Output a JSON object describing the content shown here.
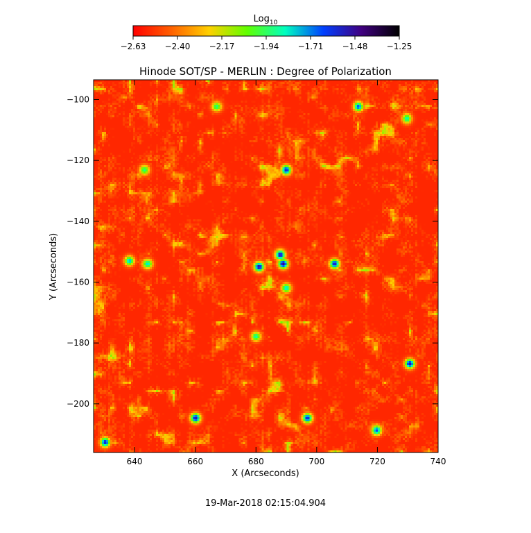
{
  "chart_data": {
    "type": "heatmap",
    "title": "Hinode SOT/SP - MERLIN : Degree of Polarization",
    "xlabel": "X (Arcseconds)",
    "ylabel": "Y (Arcseconds)",
    "xlim": [
      626.5,
      740
    ],
    "ylim": [
      -216,
      -93.5
    ],
    "x_ticks": [
      640,
      660,
      680,
      700,
      720,
      740
    ],
    "x_tick_labels": [
      "640",
      "660",
      "680",
      "700",
      "720",
      "740"
    ],
    "y_ticks": [
      -100,
      -120,
      -140,
      -160,
      -180,
      -200
    ],
    "y_tick_labels": [
      "−100",
      "−120",
      "−140",
      "−160",
      "−180",
      "−200"
    ],
    "colorbar": {
      "label_base": "Log",
      "label_sub": "10",
      "range": [
        -2.63,
        -1.25
      ],
      "ticks": [
        -2.63,
        -2.4,
        -2.17,
        -1.94,
        -1.71,
        -1.48,
        -1.25
      ],
      "tick_labels": [
        "−2.63",
        "−2.40",
        "−2.17",
        "−1.94",
        "−1.71",
        "−1.48",
        "−1.25"
      ],
      "colormap": [
        "#ff0000",
        "#ff6000",
        "#ffd000",
        "#60ff00",
        "#00ffc0",
        "#0040ff",
        "#400080",
        "#000000"
      ]
    },
    "background_level": -2.55,
    "features": [
      {
        "x": 681,
        "y": -155,
        "value": -1.48
      },
      {
        "x": 689,
        "y": -154,
        "value": -1.45
      },
      {
        "x": 688,
        "y": -151,
        "value": -1.5
      },
      {
        "x": 706,
        "y": -154,
        "value": -1.52
      },
      {
        "x": 690,
        "y": -123,
        "value": -1.55
      },
      {
        "x": 731,
        "y": -187,
        "value": -1.5
      },
      {
        "x": 660,
        "y": -205,
        "value": -1.5
      },
      {
        "x": 697,
        "y": -205,
        "value": -1.55
      },
      {
        "x": 630,
        "y": -213,
        "value": -1.55
      },
      {
        "x": 714,
        "y": -102,
        "value": -1.65
      },
      {
        "x": 720,
        "y": -209,
        "value": -1.65
      },
      {
        "x": 638,
        "y": -153,
        "value": -1.75
      },
      {
        "x": 644,
        "y": -154,
        "value": -1.8
      },
      {
        "x": 690,
        "y": -162,
        "value": -1.8
      },
      {
        "x": 680,
        "y": -178,
        "value": -1.85
      },
      {
        "x": 730,
        "y": -106,
        "value": -1.85
      },
      {
        "x": 667,
        "y": -102,
        "value": -1.9
      },
      {
        "x": 643,
        "y": -123,
        "value": -1.9
      }
    ],
    "timestamp": "19-Mar-2018 02:15:04.904"
  }
}
